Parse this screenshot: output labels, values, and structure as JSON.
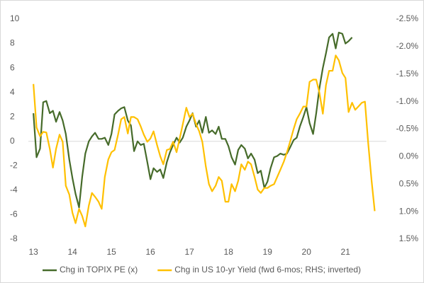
{
  "chart_data": {
    "type": "line",
    "xlim": [
      12.87,
      22.05
    ],
    "xticks": [
      13,
      14,
      15,
      16,
      17,
      18,
      19,
      20,
      21
    ],
    "ylim": [
      -8,
      10
    ],
    "yticks": [
      -8,
      -6,
      -4,
      -2,
      0,
      2,
      4,
      6,
      8,
      10
    ],
    "y2lim": [
      -2.5,
      1.5
    ],
    "y2_inverted": true,
    "y2ticks": [
      {
        "value": -2.5,
        "label": "-2.5%"
      },
      {
        "value": -2,
        "label": "-2.0%"
      },
      {
        "value": -1.5,
        "label": "-1.5%"
      },
      {
        "value": -1,
        "label": "-1.0%"
      },
      {
        "value": -0.5,
        "label": "-0.5%"
      },
      {
        "value": 0,
        "label": "0.0%"
      },
      {
        "value": 0.5,
        "label": "0.5%"
      },
      {
        "value": 1,
        "label": "1.0%"
      },
      {
        "value": 1.5,
        "label": "1.5%"
      }
    ],
    "grid": false,
    "zero_line": true,
    "legend": "bottom",
    "series": [
      {
        "name": "Chg in TOPIX PE (x)",
        "color": "#466b2a",
        "x": [
          13,
          13.08,
          13.17,
          13.25,
          13.33,
          13.42,
          13.5,
          13.58,
          13.67,
          13.75,
          13.83,
          13.92,
          14,
          14.08,
          14.17,
          14.25,
          14.33,
          14.42,
          14.5,
          14.58,
          14.67,
          14.75,
          14.83,
          14.92,
          15,
          15.08,
          15.17,
          15.25,
          15.33,
          15.42,
          15.5,
          15.58,
          15.67,
          15.75,
          15.83,
          15.92,
          16,
          16.08,
          16.17,
          16.25,
          16.33,
          16.42,
          16.5,
          16.58,
          16.67,
          16.75,
          16.83,
          16.92,
          17,
          17.08,
          17.17,
          17.25,
          17.33,
          17.42,
          17.5,
          17.58,
          17.67,
          17.75,
          17.83,
          17.92,
          18,
          18.08,
          18.17,
          18.25,
          18.33,
          18.42,
          18.5,
          18.58,
          18.67,
          18.75,
          18.83,
          18.92,
          19,
          19.08,
          19.17,
          19.25,
          19.33,
          19.42,
          19.5,
          19.58,
          19.67,
          19.75,
          19.83,
          19.92,
          20,
          20.08,
          20.17,
          20.25,
          20.33,
          20.42,
          20.5,
          20.58,
          20.67,
          20.75,
          20.83,
          20.92,
          21,
          21.08,
          21.17
        ],
        "values": [
          2.3,
          -1.3,
          -0.6,
          3.2,
          3.3,
          2.3,
          2.5,
          1.6,
          2.4,
          1.7,
          0.6,
          -1.5,
          -3.0,
          -4.3,
          -5.4,
          -2.9,
          -1.0,
          0,
          0.4,
          0.7,
          0.2,
          0.2,
          0.3,
          -0.3,
          0.6,
          2.2,
          2.5,
          2.7,
          2.8,
          1.7,
          1.3,
          -0.8,
          0,
          -0.3,
          -0.2,
          -1.7,
          -3.1,
          -2.2,
          -2.5,
          -2.3,
          -3.0,
          -1.7,
          -0.9,
          -0.3,
          0.3,
          -0.1,
          0.3,
          1.2,
          1.7,
          2.3,
          1.2,
          1.7,
          0.7,
          2.0,
          0.7,
          0.9,
          0.6,
          1.2,
          0.2,
          0.2,
          -0.4,
          -1.3,
          -1.9,
          -0.7,
          -0.3,
          -0.6,
          -1.4,
          -1.0,
          -1.5,
          -2.6,
          -2.4,
          -3.8,
          -3.3,
          -2.2,
          -1.3,
          -1.2,
          -1.0,
          -1.1,
          -1.0,
          -0.5,
          0.1,
          0.3,
          1.2,
          2.0,
          2.8,
          1.5,
          0.6,
          2.3,
          4.3,
          6.0,
          7.2,
          8.5,
          8.8,
          7.6,
          8.9,
          8.8,
          8.0,
          8.2,
          8.5
        ]
      },
      {
        "name": "Chg in US 10-yr Yield (fwd 6-mos; RHS; inverted)",
        "color": "#ffc000",
        "axis": "y2",
        "x": [
          13,
          13.08,
          13.17,
          13.25,
          13.33,
          13.42,
          13.5,
          13.58,
          13.67,
          13.75,
          13.83,
          13.92,
          14,
          14.08,
          14.17,
          14.25,
          14.33,
          14.42,
          14.5,
          14.58,
          14.67,
          14.75,
          14.83,
          14.92,
          15,
          15.08,
          15.17,
          15.25,
          15.33,
          15.42,
          15.5,
          15.58,
          15.67,
          15.75,
          15.83,
          15.92,
          16,
          16.08,
          16.17,
          16.25,
          16.33,
          16.42,
          16.5,
          16.58,
          16.67,
          16.75,
          16.83,
          16.92,
          17,
          17.08,
          17.17,
          17.25,
          17.33,
          17.42,
          17.5,
          17.58,
          17.67,
          17.75,
          17.83,
          17.92,
          18,
          18.08,
          18.17,
          18.25,
          18.33,
          18.42,
          18.5,
          18.58,
          18.67,
          18.75,
          18.83,
          18.92,
          19,
          19.08,
          19.17,
          19.25,
          19.33,
          19.42,
          19.5,
          19.58,
          19.67,
          19.75,
          19.83,
          19.92,
          20,
          20.08,
          20.17,
          20.25,
          20.33,
          20.42,
          20.5,
          20.58,
          20.67,
          20.75,
          20.83,
          20.92,
          21,
          21.08,
          21.17,
          21.25,
          21.33,
          21.42,
          21.5,
          21.58,
          21.67,
          21.75
        ],
        "values": [
          -1.32,
          -0.53,
          -0.37,
          -0.45,
          -0.44,
          -0.14,
          0.2,
          -0.14,
          -0.4,
          -0.27,
          0.53,
          0.69,
          1.02,
          1.21,
          0.95,
          1.08,
          1.27,
          0.89,
          0.66,
          0.73,
          0.82,
          0.95,
          0.37,
          0.05,
          -0.08,
          -0.12,
          -0.4,
          -0.68,
          -0.72,
          -0.42,
          -0.72,
          -0.72,
          -0.68,
          -0.55,
          -0.4,
          -0.27,
          -0.33,
          -0.46,
          -0.21,
          -0.01,
          0.14,
          -0.12,
          -0.14,
          -0.27,
          -0.08,
          -0.33,
          -0.59,
          -0.89,
          -0.72,
          -0.78,
          -0.59,
          -0.46,
          -0.27,
          0.18,
          0.5,
          0.63,
          0.53,
          0.37,
          0.44,
          0.82,
          0.82,
          0.5,
          0.63,
          0.44,
          0.14,
          0.24,
          0.09,
          0.14,
          0.37,
          0.6,
          0.66,
          0.57,
          0.57,
          0.53,
          0.5,
          0.37,
          0.24,
          0.09,
          -0.08,
          -0.27,
          -0.5,
          -0.68,
          -0.78,
          -0.91,
          -0.91,
          -1.36,
          -1.4,
          -1.4,
          -1.17,
          -0.78,
          -1.3,
          -1.56,
          -1.56,
          -1.84,
          -1.75,
          -1.52,
          -1.43,
          -0.81,
          -0.98,
          -0.85,
          -0.91,
          -0.98,
          -1.0,
          -0.27,
          0.44,
          0.99
        ]
      }
    ]
  }
}
